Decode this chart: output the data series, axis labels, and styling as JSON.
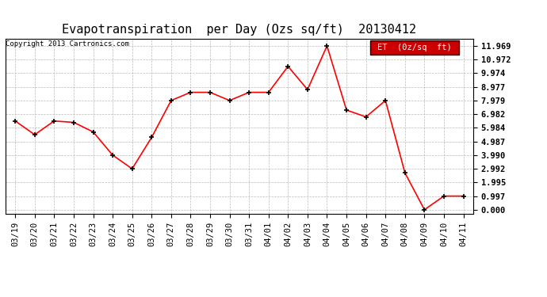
{
  "title": "Evapotranspiration  per Day (Ozs sq/ft)  20130412",
  "copyright": "Copyright 2013 Cartronics.com",
  "legend_label": "ET  (0z/sq  ft)",
  "x_labels": [
    "03/19",
    "03/20",
    "03/21",
    "03/22",
    "03/23",
    "03/24",
    "03/25",
    "03/26",
    "03/27",
    "03/28",
    "03/29",
    "03/30",
    "03/31",
    "04/01",
    "04/02",
    "04/03",
    "04/04",
    "04/05",
    "04/06",
    "04/07",
    "04/08",
    "04/09",
    "04/10",
    "04/11"
  ],
  "y_values": [
    6.482,
    5.484,
    6.482,
    6.382,
    5.684,
    3.99,
    2.992,
    5.284,
    7.979,
    8.577,
    8.577,
    7.979,
    8.577,
    8.577,
    10.473,
    8.777,
    11.969,
    7.28,
    6.782,
    7.979,
    2.692,
    0.0,
    0.997,
    0.997
  ],
  "line_color": "red",
  "marker_color": "black",
  "background_color": "#ffffff",
  "grid_color": "#aaaaaa",
  "yticks": [
    0.0,
    0.997,
    1.995,
    2.992,
    3.99,
    4.987,
    5.984,
    6.982,
    7.979,
    8.977,
    9.974,
    10.972,
    11.969
  ],
  "ylim": [
    -0.3,
    12.5
  ],
  "title_fontsize": 11,
  "tick_fontsize": 7.5,
  "copyright_fontsize": 6.5,
  "legend_bg": "#cc0000",
  "legend_text_color": "#ffffff"
}
